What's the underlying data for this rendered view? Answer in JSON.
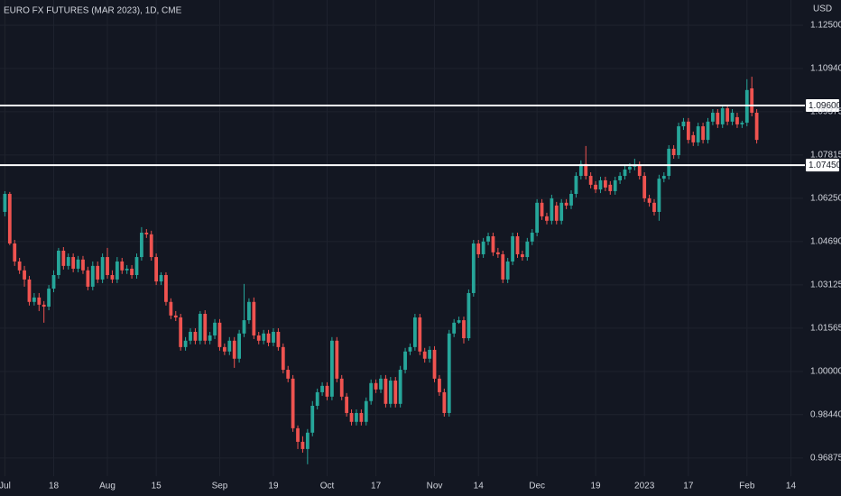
{
  "chart_data": {
    "type": "candlestick",
    "title": "EURO FX FUTURES (MAR 2023), 1D, CME",
    "currency": "USD",
    "up_color": "#26a69a",
    "down_color": "#ef5350",
    "grid": true,
    "ylim": [
      0.9622,
      1.1341
    ],
    "yticks": [
      {
        "value": 1.125,
        "label": "1.12500"
      },
      {
        "value": 1.1094,
        "label": "1.10940"
      },
      {
        "value": 1.09375,
        "label": "1.09375"
      },
      {
        "value": 1.07815,
        "label": "1.07815"
      },
      {
        "value": 1.0625,
        "label": "1.06250"
      },
      {
        "value": 1.0469,
        "label": "1.04690"
      },
      {
        "value": 1.03125,
        "label": "1.03125"
      },
      {
        "value": 1.01565,
        "label": "1.01565"
      },
      {
        "value": 1.0,
        "label": "1.00000"
      },
      {
        "value": 0.9844,
        "label": "0.98440"
      },
      {
        "value": 0.96875,
        "label": "0.96875"
      }
    ],
    "xlim": [
      -1,
      163.5
    ],
    "xticks": [
      {
        "value": 0,
        "label": "Jul"
      },
      {
        "value": 10,
        "label": "18"
      },
      {
        "value": 21,
        "label": "Aug"
      },
      {
        "value": 31,
        "label": "15"
      },
      {
        "value": 44,
        "label": "Sep"
      },
      {
        "value": 55,
        "label": "19"
      },
      {
        "value": 66,
        "label": "Oct"
      },
      {
        "value": 76,
        "label": "17"
      },
      {
        "value": 88,
        "label": "Nov"
      },
      {
        "value": 97,
        "label": "14"
      },
      {
        "value": 109,
        "label": "Dec"
      },
      {
        "value": 121,
        "label": "19"
      },
      {
        "value": 131,
        "label": "2023"
      },
      {
        "value": 140,
        "label": "17"
      },
      {
        "value": 152,
        "label": "Feb"
      },
      {
        "value": 161,
        "label": "14"
      }
    ],
    "levels": [
      {
        "value": 1.096,
        "label": "1.09600"
      },
      {
        "value": 1.0745,
        "label": "1.07450"
      }
    ],
    "level_color": "#ffffff",
    "ohlc": [
      [
        1.0576,
        1.0651,
        1.056,
        1.0641
      ],
      [
        1.0641,
        1.0648,
        1.0456,
        1.0462
      ],
      [
        1.0462,
        1.0475,
        1.0381,
        1.0397
      ],
      [
        1.0397,
        1.041,
        1.0352,
        1.0365
      ],
      [
        1.0365,
        1.0381,
        1.0306,
        1.0332
      ],
      [
        1.0332,
        1.0345,
        1.0238,
        1.0251
      ],
      [
        1.0251,
        1.0283,
        1.0238,
        1.0267
      ],
      [
        1.0267,
        1.0283,
        1.0218,
        1.0241
      ],
      [
        1.0241,
        1.0254,
        1.0176,
        1.0234
      ],
      [
        1.0234,
        1.0312,
        1.0221,
        1.0299
      ],
      [
        1.0299,
        1.0365,
        1.0286,
        1.0348
      ],
      [
        1.0348,
        1.0446,
        1.0335,
        1.0436
      ],
      [
        1.0436,
        1.0449,
        1.0368,
        1.0381
      ],
      [
        1.0381,
        1.0426,
        1.0368,
        1.0413
      ],
      [
        1.0413,
        1.0426,
        1.0358,
        1.0371
      ],
      [
        1.0371,
        1.0417,
        1.0358,
        1.0404
      ],
      [
        1.0404,
        1.0417,
        1.0352,
        1.0365
      ],
      [
        1.0365,
        1.0378,
        1.0293,
        1.0306
      ],
      [
        1.0306,
        1.0397,
        1.0293,
        1.0381
      ],
      [
        1.0381,
        1.0397,
        1.0319,
        1.0332
      ],
      [
        1.0332,
        1.0426,
        1.0319,
        1.0413
      ],
      [
        1.0413,
        1.0446,
        1.0335,
        1.0348
      ],
      [
        1.0348,
        1.0365,
        1.0319,
        1.0332
      ],
      [
        1.0332,
        1.0413,
        1.0319,
        1.0397
      ],
      [
        1.0397,
        1.041,
        1.0352,
        1.0365
      ],
      [
        1.0365,
        1.0384,
        1.0352,
        1.0371
      ],
      [
        1.0371,
        1.0384,
        1.0335,
        1.0348
      ],
      [
        1.0348,
        1.0426,
        1.0335,
        1.0413
      ],
      [
        1.0413,
        1.0521,
        1.04,
        1.0501
      ],
      [
        1.0501,
        1.0514,
        1.0482,
        1.0495
      ],
      [
        1.0495,
        1.0508,
        1.04,
        1.0413
      ],
      [
        1.0413,
        1.0426,
        1.0312,
        1.0325
      ],
      [
        1.0325,
        1.0358,
        1.0312,
        1.0348
      ],
      [
        1.0348,
        1.0358,
        1.0238,
        1.0251
      ],
      [
        1.0251,
        1.0264,
        1.0189,
        1.0202
      ],
      [
        1.0202,
        1.0218,
        1.0182,
        1.0195
      ],
      [
        1.0195,
        1.0208,
        1.0075,
        1.0088
      ],
      [
        1.0088,
        1.0124,
        1.0075,
        1.0111
      ],
      [
        1.0111,
        1.0156,
        1.0098,
        1.0143
      ],
      [
        1.0143,
        1.0156,
        1.0098,
        1.0111
      ],
      [
        1.0111,
        1.0218,
        1.0098,
        1.0208
      ],
      [
        1.0208,
        1.0221,
        1.0098,
        1.0111
      ],
      [
        1.0111,
        1.0143,
        1.0098,
        1.013
      ],
      [
        1.013,
        1.0189,
        1.0117,
        1.0176
      ],
      [
        1.0176,
        1.0189,
        1.0075,
        1.0088
      ],
      [
        1.0088,
        1.0101,
        1.0059,
        1.0072
      ],
      [
        1.0072,
        1.0124,
        1.0059,
        1.0111
      ],
      [
        1.0111,
        1.0124,
        1.0013,
        1.0046
      ],
      [
        1.0046,
        1.015,
        1.0032,
        1.0137
      ],
      [
        1.0137,
        1.0316,
        1.0124,
        1.0185
      ],
      [
        1.0185,
        1.0264,
        1.0172,
        1.0251
      ],
      [
        1.0251,
        1.0267,
        1.0117,
        1.013
      ],
      [
        1.013,
        1.0143,
        1.0098,
        1.0111
      ],
      [
        1.0111,
        1.015,
        1.0098,
        1.0137
      ],
      [
        1.0137,
        1.015,
        1.0091,
        1.0104
      ],
      [
        1.0104,
        1.0156,
        1.0091,
        1.0143
      ],
      [
        1.0143,
        1.0156,
        1.0075,
        1.0088
      ],
      [
        1.0088,
        1.0101,
        0.9993,
        1.0006
      ],
      [
        1.0006,
        1.002,
        0.9961,
        0.9974
      ],
      [
        0.9974,
        0.9987,
        0.9782,
        0.9795
      ],
      [
        0.9795,
        0.9805,
        0.972,
        0.9746
      ],
      [
        0.9746,
        0.9766,
        0.9707,
        0.972
      ],
      [
        0.972,
        0.9792,
        0.9665,
        0.9779
      ],
      [
        0.9779,
        0.9893,
        0.9766,
        0.9876
      ],
      [
        0.9876,
        0.9938,
        0.9863,
        0.9925
      ],
      [
        0.9925,
        0.9961,
        0.9912,
        0.9948
      ],
      [
        0.9948,
        0.9961,
        0.9896,
        0.9909
      ],
      [
        0.9909,
        1.0124,
        0.9896,
        1.0111
      ],
      [
        1.0111,
        1.0124,
        0.9961,
        0.9974
      ],
      [
        0.9974,
        0.9987,
        0.9896,
        0.9909
      ],
      [
        0.9909,
        0.9922,
        0.9837,
        0.985
      ],
      [
        0.985,
        0.9863,
        0.9805,
        0.9818
      ],
      [
        0.9818,
        0.9863,
        0.9805,
        0.985
      ],
      [
        0.985,
        0.9863,
        0.9805,
        0.9818
      ],
      [
        0.9818,
        0.9906,
        0.9805,
        0.9893
      ],
      [
        0.9893,
        0.9971,
        0.988,
        0.9958
      ],
      [
        0.9958,
        0.9971,
        0.9922,
        0.9935
      ],
      [
        0.9935,
        0.9987,
        0.9922,
        0.9974
      ],
      [
        0.9974,
        0.9987,
        0.987,
        0.9883
      ],
      [
        0.9883,
        0.998,
        0.987,
        0.9967
      ],
      [
        0.9967,
        0.998,
        0.987,
        0.9883
      ],
      [
        0.9883,
        1.002,
        0.987,
        1.0006
      ],
      [
        1.0006,
        1.0085,
        0.9993,
        1.0072
      ],
      [
        1.0072,
        1.0101,
        1.0059,
        1.0088
      ],
      [
        1.0088,
        1.0208,
        1.0075,
        1.0195
      ],
      [
        1.0195,
        1.0208,
        1.0059,
        1.0072
      ],
      [
        1.0072,
        1.0085,
        1.0032,
        1.0046
      ],
      [
        1.0046,
        1.0091,
        1.0032,
        1.0078
      ],
      [
        1.0078,
        1.0091,
        0.9961,
        0.9974
      ],
      [
        0.9974,
        0.9987,
        0.9912,
        0.9925
      ],
      [
        0.9925,
        0.9938,
        0.9837,
        0.985
      ],
      [
        0.985,
        1.015,
        0.9837,
        1.0137
      ],
      [
        1.0137,
        1.0189,
        1.0124,
        1.0176
      ],
      [
        1.0176,
        1.0198,
        1.0172,
        1.0185
      ],
      [
        1.0185,
        1.0198,
        1.0101,
        1.012
      ],
      [
        1.012,
        1.0296,
        1.0111,
        1.0283
      ],
      [
        1.0283,
        1.0475,
        1.027,
        1.0462
      ],
      [
        1.0462,
        1.0475,
        1.041,
        1.0423
      ],
      [
        1.0423,
        1.0482,
        1.041,
        1.0469
      ],
      [
        1.0469,
        1.0501,
        1.0456,
        1.0488
      ],
      [
        1.0488,
        1.0501,
        1.0417,
        1.043
      ],
      [
        1.043,
        1.0446,
        1.041,
        1.0423
      ],
      [
        1.0423,
        1.0436,
        1.0319,
        1.0332
      ],
      [
        1.0332,
        1.041,
        1.0319,
        1.0397
      ],
      [
        1.0397,
        1.0501,
        1.0384,
        1.0488
      ],
      [
        1.0488,
        1.0501,
        1.041,
        1.0423
      ],
      [
        1.0423,
        1.0436,
        1.04,
        1.0413
      ],
      [
        1.0413,
        1.0482,
        1.04,
        1.0469
      ],
      [
        1.0469,
        1.0514,
        1.0456,
        1.0501
      ],
      [
        1.0501,
        1.0622,
        1.0488,
        1.0609
      ],
      [
        1.0609,
        1.0622,
        1.0547,
        1.056
      ],
      [
        1.056,
        1.0573,
        1.0531,
        1.0544
      ],
      [
        1.0544,
        1.0638,
        1.0531,
        1.0625
      ],
      [
        1.0599,
        1.0612,
        1.0531,
        1.0544
      ],
      [
        1.0544,
        1.0622,
        1.0531,
        1.0609
      ],
      [
        1.0609,
        1.0622,
        1.0586,
        1.0599
      ],
      [
        1.0599,
        1.0654,
        1.0586,
        1.0641
      ],
      [
        1.0641,
        1.0719,
        1.0628,
        1.0706
      ],
      [
        1.0706,
        1.0762,
        1.0693,
        1.0749
      ],
      [
        1.0749,
        1.0814,
        1.0693,
        1.0706
      ],
      [
        1.0706,
        1.0719,
        1.0661,
        1.0674
      ],
      [
        1.0674,
        1.0687,
        1.0644,
        1.0657
      ],
      [
        1.0657,
        1.0703,
        1.0644,
        1.069
      ],
      [
        1.069,
        1.0703,
        1.0651,
        1.0664
      ],
      [
        1.0674,
        1.0687,
        1.0638,
        1.0651
      ],
      [
        1.0651,
        1.0703,
        1.0638,
        1.069
      ],
      [
        1.069,
        1.0719,
        1.0677,
        1.0706
      ],
      [
        1.0706,
        1.0742,
        1.0693,
        1.0729
      ],
      [
        1.0729,
        1.0752,
        1.0716,
        1.0739
      ],
      [
        1.0739,
        1.0768,
        1.0726,
        1.0745
      ],
      [
        1.0745,
        1.0758,
        1.0693,
        1.0706
      ],
      [
        1.0706,
        1.0719,
        1.0612,
        1.0625
      ],
      [
        1.0625,
        1.0638,
        1.0595,
        1.0609
      ],
      [
        1.0609,
        1.0622,
        1.0563,
        1.0576
      ],
      [
        1.0576,
        1.071,
        1.0544,
        1.0696
      ],
      [
        1.0696,
        1.0719,
        1.0683,
        1.0706
      ],
      [
        1.0706,
        1.0817,
        1.0693,
        1.0804
      ],
      [
        1.0804,
        1.0817,
        1.0768,
        1.0781
      ],
      [
        1.0781,
        1.0898,
        1.0768,
        1.0885
      ],
      [
        1.0885,
        1.0915,
        1.0872,
        1.0902
      ],
      [
        1.0902,
        1.0915,
        1.0823,
        1.0836
      ],
      [
        1.0853,
        1.0866,
        1.0814,
        1.0827
      ],
      [
        1.0827,
        1.0898,
        1.0814,
        1.0885
      ],
      [
        1.0885,
        1.0898,
        1.0823,
        1.0836
      ],
      [
        1.0836,
        1.0915,
        1.0823,
        1.0902
      ],
      [
        1.0902,
        1.0947,
        1.0889,
        1.0934
      ],
      [
        1.0934,
        1.0947,
        1.0879,
        1.0892
      ],
      [
        1.0892,
        1.0963,
        1.0879,
        1.095
      ],
      [
        1.095,
        1.0963,
        1.0889,
        1.0902
      ],
      [
        1.0902,
        1.0947,
        1.0889,
        1.0934
      ],
      [
        1.0918,
        1.0934,
        1.0879,
        1.0892
      ],
      [
        1.0892,
        1.0905,
        1.0879,
        1.0898
      ],
      [
        1.0898,
        1.1055,
        1.0885,
        1.1016
      ],
      [
        1.1022,
        1.1064,
        1.0921,
        1.0934
      ],
      [
        1.0934,
        1.0947,
        1.0823,
        1.0836
      ]
    ]
  }
}
